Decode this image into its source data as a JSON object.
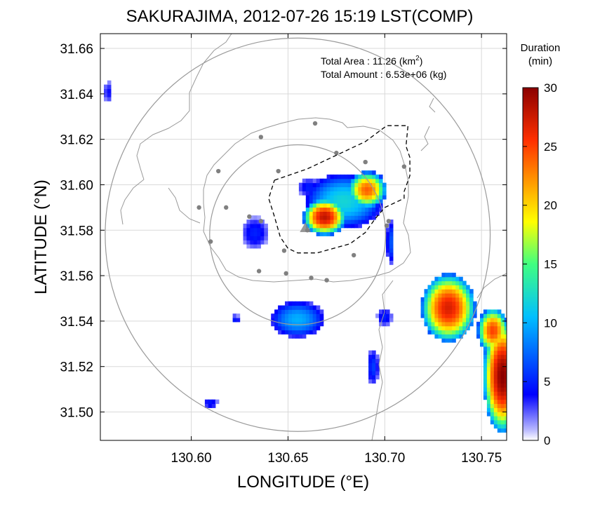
{
  "title": "SAKURAJIMA, 2012-07-26 15:19 LST(COMP)",
  "annotations": {
    "area_label": "Total Area   : 11.26 (km",
    "area_sup": "2",
    "area_close": ")",
    "amount_label": "Total Amount : 6.53e+06 (kg)"
  },
  "colorbar": {
    "title_line1": "Duration",
    "title_line2": "(min)",
    "ticks": [
      "0",
      "5",
      "10",
      "15",
      "20",
      "25",
      "30"
    ],
    "range": [
      0,
      30
    ],
    "colormap": "jet"
  },
  "chart_data": {
    "type": "heatmap",
    "title": "SAKURAJIMA, 2012-07-26 15:19 LST(COMP)",
    "xlabel": "LONGITUDE (°E)",
    "ylabel": "LATITUDE (°N)",
    "xlim": [
      130.553,
      130.763
    ],
    "ylim": [
      31.4875,
      31.6665
    ],
    "x_ticks": [
      "130.60",
      "130.65",
      "130.70",
      "130.75"
    ],
    "y_ticks": [
      "31.50",
      "31.52",
      "31.54",
      "31.56",
      "31.58",
      "31.60",
      "31.62",
      "31.64",
      "31.66"
    ],
    "grid": true,
    "value_label": "Duration (min)",
    "value_range": [
      0,
      30
    ],
    "center": [
      130.655,
      31.578
    ],
    "range_rings_deg": [
      0.0455,
      0.0995
    ],
    "blobs": [
      {
        "lon": 130.668,
        "lat": 31.585,
        "rx": 0.011,
        "ry": 0.008,
        "peak": 28
      },
      {
        "lon": 130.69,
        "lat": 31.597,
        "rx": 0.01,
        "ry": 0.008,
        "peak": 24
      },
      {
        "lon": 130.678,
        "lat": 31.592,
        "rx": 0.02,
        "ry": 0.012,
        "peak": 12
      },
      {
        "lon": 130.66,
        "lat": 31.598,
        "rx": 0.006,
        "ry": 0.004,
        "peak": 5
      },
      {
        "lon": 130.632,
        "lat": 31.578,
        "rx": 0.007,
        "ry": 0.007,
        "peak": 5
      },
      {
        "lon": 130.654,
        "lat": 31.54,
        "rx": 0.014,
        "ry": 0.008,
        "peak": 10
      },
      {
        "lon": 130.732,
        "lat": 31.545,
        "rx": 0.014,
        "ry": 0.015,
        "peak": 27
      },
      {
        "lon": 130.76,
        "lat": 31.515,
        "rx": 0.01,
        "ry": 0.025,
        "peak": 30
      },
      {
        "lon": 130.755,
        "lat": 31.535,
        "rx": 0.008,
        "ry": 0.01,
        "peak": 25
      },
      {
        "lon": 130.702,
        "lat": 31.574,
        "rx": 0.002,
        "ry": 0.01,
        "peak": 7
      },
      {
        "lon": 130.699,
        "lat": 31.541,
        "rx": 0.004,
        "ry": 0.004,
        "peak": 5
      },
      {
        "lon": 130.693,
        "lat": 31.519,
        "rx": 0.003,
        "ry": 0.008,
        "peak": 6
      },
      {
        "lon": 130.556,
        "lat": 31.64,
        "rx": 0.002,
        "ry": 0.005,
        "peak": 4
      },
      {
        "lon": 130.609,
        "lat": 31.503,
        "rx": 0.004,
        "ry": 0.002,
        "peak": 5
      },
      {
        "lon": 130.622,
        "lat": 31.54,
        "rx": 0.002,
        "ry": 0.002,
        "peak": 5
      }
    ],
    "sampling_points": [
      [
        130.664,
        31.627
      ],
      [
        130.636,
        31.621
      ],
      [
        130.614,
        31.606
      ],
      [
        130.675,
        31.614
      ],
      [
        130.69,
        31.61
      ],
      [
        130.71,
        31.608
      ],
      [
        130.645,
        31.606
      ],
      [
        130.618,
        31.59
      ],
      [
        130.604,
        31.59
      ],
      [
        130.63,
        31.586
      ],
      [
        130.636,
        31.584
      ],
      [
        130.61,
        31.575
      ],
      [
        130.648,
        31.571
      ],
      [
        130.66,
        31.58
      ],
      [
        130.702,
        31.584
      ],
      [
        130.701,
        31.582
      ],
      [
        130.635,
        31.562
      ],
      [
        130.649,
        31.561
      ],
      [
        130.662,
        31.559
      ],
      [
        130.67,
        31.558
      ],
      [
        130.684,
        31.569
      ]
    ],
    "dashed_region": [
      [
        130.643,
        31.602
      ],
      [
        130.66,
        31.607
      ],
      [
        130.69,
        31.619
      ],
      [
        130.701,
        31.626
      ],
      [
        130.712,
        31.626
      ],
      [
        130.711,
        31.617
      ],
      [
        130.713,
        31.612
      ],
      [
        130.713,
        31.604
      ],
      [
        130.71,
        31.597
      ],
      [
        130.71,
        31.594
      ],
      [
        130.7,
        31.59
      ],
      [
        130.695,
        31.585
      ],
      [
        130.69,
        31.579
      ],
      [
        130.682,
        31.574
      ],
      [
        130.665,
        31.57
      ],
      [
        130.655,
        31.57
      ],
      [
        130.65,
        31.572
      ],
      [
        130.646,
        31.577
      ],
      [
        130.643,
        31.586
      ],
      [
        130.64,
        31.594
      ],
      [
        130.643,
        31.602
      ]
    ]
  }
}
